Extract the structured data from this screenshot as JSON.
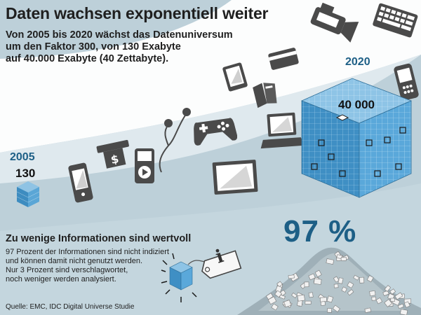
{
  "header": {
    "title": "Daten wachsen exponentiell weiter",
    "subtitle_lines": [
      "Von 2005 bis 2020 wächst das Datenuniversum",
      "um den Faktor 300, von 130 Exabyte",
      "auf 40.000 Exabyte (40 Zettabyte)."
    ]
  },
  "start": {
    "year": "2005",
    "value": "130"
  },
  "end": {
    "year": "2020",
    "value": "40 000"
  },
  "info": {
    "percent": "97 %",
    "heading": "Zu wenige Informationen sind wertvoll",
    "lines": [
      "97 Prozent der Informationen sind nicht indiziert",
      "und können damit nicht genutzt werden.",
      "Nur 3 Prozent sind verschlagwortet,",
      "noch weniger werden analysiert."
    ],
    "tag_glyph": "i"
  },
  "source": "Quelle: EMC, IDC Digital Universe Studie",
  "colors": {
    "background": "#bdd0d9",
    "band": "#ffffff",
    "accent": "#1d5f86",
    "cube": "#4f9fd2",
    "icons": "#4a4a4a"
  },
  "icons": [
    "video-camera-icon",
    "keyboard-icon",
    "credit-card-icon",
    "tablet-icon",
    "phone-icon",
    "book-icon",
    "mp3-player-icon",
    "earphones-icon",
    "gamepad-icon",
    "laptop-icon",
    "atm-card-icon",
    "mobile-phone-icon",
    "monitor-icon",
    "data-cube-icon",
    "info-tag-icon",
    "paper-pile-icon"
  ]
}
